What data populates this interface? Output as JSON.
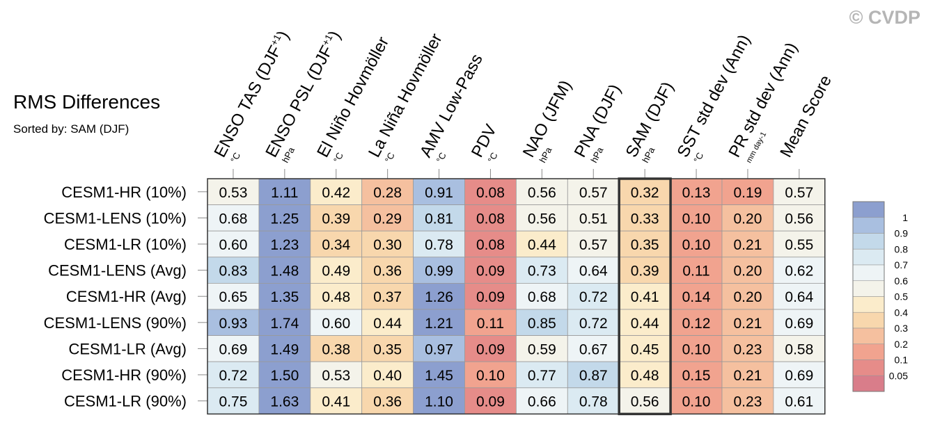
{
  "watermark": "© CVDP",
  "chart_data": {
    "type": "heatmap",
    "title": "RMS Differences",
    "subtitle": "Sorted by: SAM (DJF)",
    "highlight_column": "SAM (DJF)",
    "columns": [
      {
        "label": "ENSO TAS (DJF+1)",
        "main": "ENSO TAS (DJF",
        "sup": "+1",
        "close": ")",
        "unit": "°C"
      },
      {
        "label": "ENSO PSL (DJF+1)",
        "main": "ENSO PSL (DJF",
        "sup": "+1",
        "close": ")",
        "unit": "hPa"
      },
      {
        "label": "El Niño Hovmöller",
        "main": "El Niño Hovmöller",
        "sup": "",
        "close": "",
        "unit": "°C"
      },
      {
        "label": "La Niña Hovmöller",
        "main": "La Niña Hovmöller",
        "sup": "",
        "close": "",
        "unit": "°C"
      },
      {
        "label": "AMV Low-Pass",
        "main": "AMV Low-Pass",
        "sup": "",
        "close": "",
        "unit": "°C"
      },
      {
        "label": "PDV",
        "main": "PDV",
        "sup": "",
        "close": "",
        "unit": "°C"
      },
      {
        "label": "NAO (JFM)",
        "main": "NAO (JFM)",
        "sup": "",
        "close": "",
        "unit": "hPa"
      },
      {
        "label": "PNA (DJF)",
        "main": "PNA (DJF)",
        "sup": "",
        "close": "",
        "unit": "hPa"
      },
      {
        "label": "SAM (DJF)",
        "main": "SAM (DJF)",
        "sup": "",
        "close": "",
        "unit": "hPa"
      },
      {
        "label": "SST std dev (Ann)",
        "main": "SST std dev (Ann)",
        "sup": "",
        "close": "",
        "unit": "°C"
      },
      {
        "label": "PR std dev (Ann)",
        "main": "PR std dev (Ann)",
        "sup": "",
        "close": "",
        "unit": "mm day-1"
      },
      {
        "label": "Mean Score",
        "main": "Mean Score",
        "sup": "",
        "close": "",
        "unit": ""
      }
    ],
    "rows": [
      {
        "name": "CESM1-HR (10%)",
        "values": [
          0.53,
          1.11,
          0.42,
          0.28,
          0.91,
          0.08,
          0.56,
          0.57,
          0.32,
          0.13,
          0.19,
          0.57
        ]
      },
      {
        "name": "CESM1-LENS (10%)",
        "values": [
          0.68,
          1.25,
          0.39,
          0.29,
          0.81,
          0.08,
          0.56,
          0.51,
          0.33,
          0.1,
          0.2,
          0.56
        ]
      },
      {
        "name": "CESM1-LR (10%)",
        "values": [
          0.6,
          1.23,
          0.34,
          0.3,
          0.78,
          0.08,
          0.44,
          0.57,
          0.35,
          0.1,
          0.21,
          0.55
        ]
      },
      {
        "name": "CESM1-LENS (Avg)",
        "values": [
          0.83,
          1.48,
          0.49,
          0.36,
          0.99,
          0.09,
          0.73,
          0.64,
          0.39,
          0.11,
          0.2,
          0.62
        ]
      },
      {
        "name": "CESM1-HR (Avg)",
        "values": [
          0.65,
          1.35,
          0.48,
          0.37,
          1.26,
          0.09,
          0.68,
          0.72,
          0.41,
          0.14,
          0.2,
          0.64
        ]
      },
      {
        "name": "CESM1-LENS (90%)",
        "values": [
          0.93,
          1.74,
          0.6,
          0.44,
          1.21,
          0.11,
          0.85,
          0.72,
          0.44,
          0.12,
          0.21,
          0.69
        ]
      },
      {
        "name": "CESM1-LR (Avg)",
        "values": [
          0.69,
          1.49,
          0.38,
          0.35,
          0.97,
          0.09,
          0.59,
          0.67,
          0.45,
          0.1,
          0.23,
          0.58
        ]
      },
      {
        "name": "CESM1-HR (90%)",
        "values": [
          0.72,
          1.5,
          0.53,
          0.4,
          1.45,
          0.1,
          0.77,
          0.87,
          0.48,
          0.15,
          0.21,
          0.69
        ]
      },
      {
        "name": "CESM1-LR (90%)",
        "values": [
          0.75,
          1.63,
          0.41,
          0.36,
          1.1,
          0.09,
          0.66,
          0.78,
          0.56,
          0.1,
          0.23,
          0.61
        ]
      }
    ],
    "colorbar": {
      "tick_labels": [
        "1",
        "0.9",
        "0.8",
        "0.7",
        "0.6",
        "0.5",
        "0.4",
        "0.3",
        "0.2",
        "0.1",
        "0.05"
      ],
      "bins": [
        {
          "min": 1.0,
          "color": "#8c9fcf"
        },
        {
          "min": 0.9,
          "color": "#a9bfe0"
        },
        {
          "min": 0.8,
          "color": "#c3d9ea"
        },
        {
          "min": 0.7,
          "color": "#dbeaf2"
        },
        {
          "min": 0.6,
          "color": "#eef4f6"
        },
        {
          "min": 0.5,
          "color": "#f4f3ea"
        },
        {
          "min": 0.4,
          "color": "#fbeccb"
        },
        {
          "min": 0.3,
          "color": "#f8d7ad"
        },
        {
          "min": 0.2,
          "color": "#f5c09f"
        },
        {
          "min": 0.1,
          "color": "#f1a38f"
        },
        {
          "min": 0.05,
          "color": "#e68c89"
        },
        {
          "min": 0.0,
          "color": "#d97d8a"
        }
      ]
    }
  }
}
